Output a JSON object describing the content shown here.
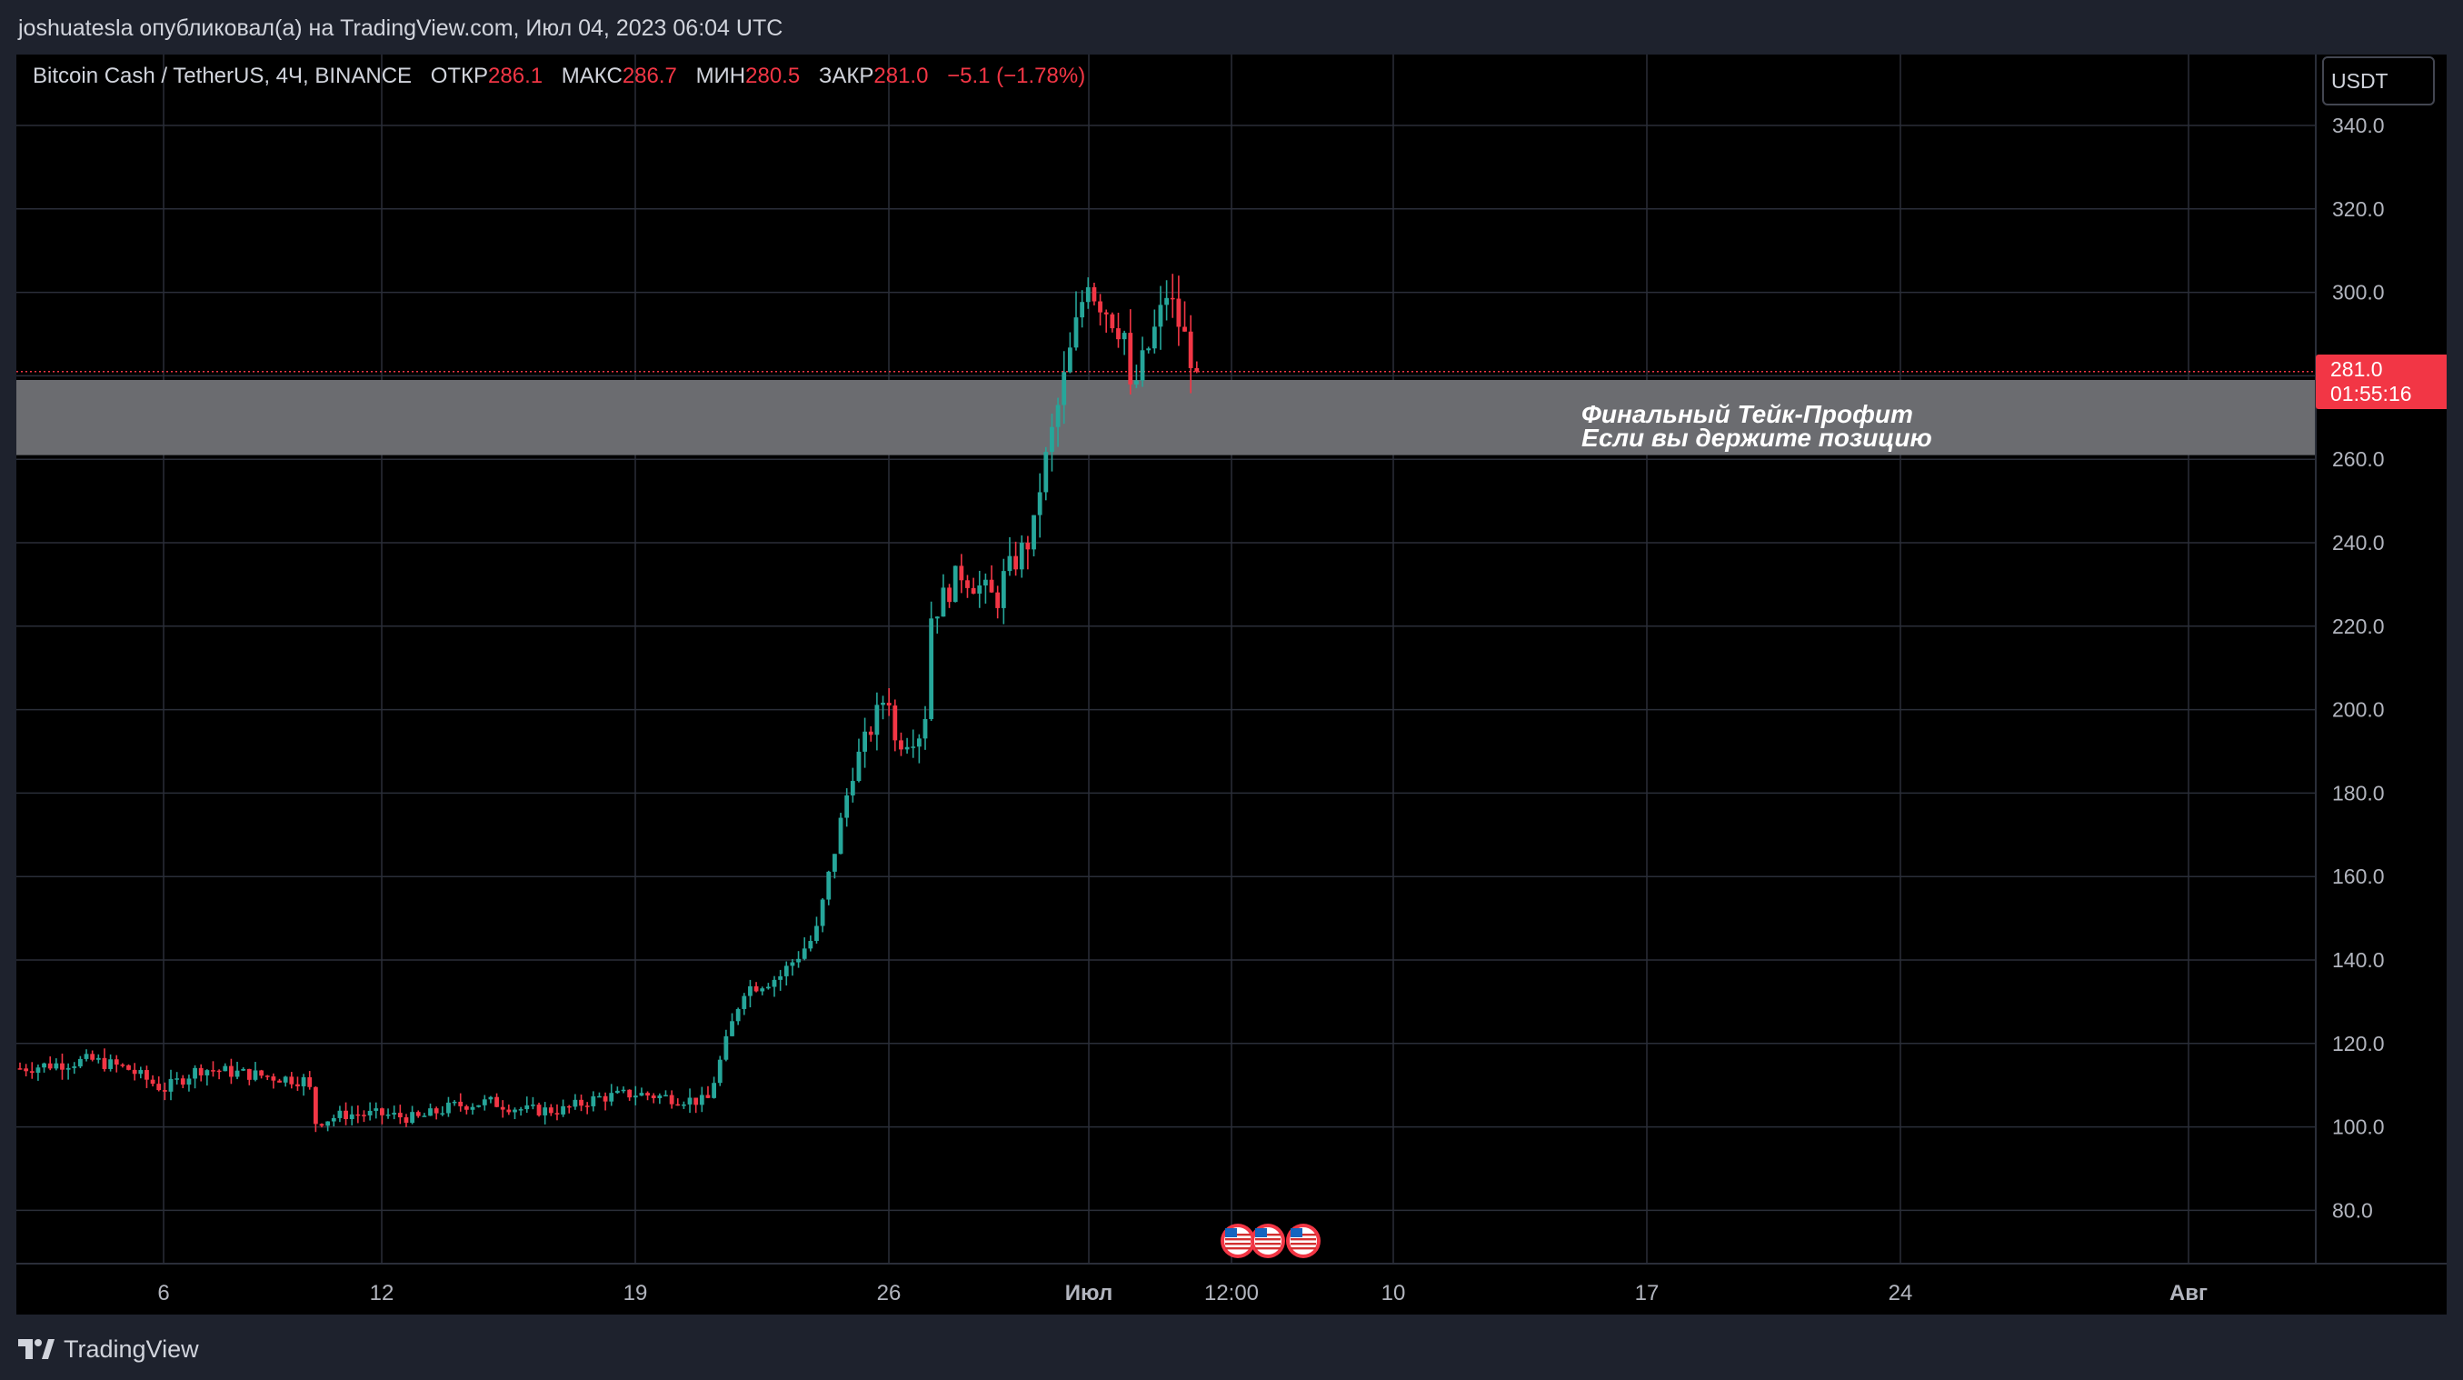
{
  "header": {
    "text": "joshuatesla опубликовал(а) на TradingView.com, Июл 04, 2023 06:04 UTC"
  },
  "legend": {
    "symbol": "Bitcoin Cash / TetherUS, 4Ч, BINANCE",
    "open_label": "ОТКР",
    "open_value": "286.1",
    "high_label": "МАКС",
    "high_value": "286.7",
    "low_label": "МИН",
    "low_value": "280.5",
    "close_label": "ЗАКР",
    "close_value": "281.0",
    "change": "−5.1 (−1.78%)"
  },
  "currency": "USDT",
  "price_tag": {
    "price": "281.0",
    "countdown": "01:55:16"
  },
  "zone": {
    "line1": "Финальный Тейк-Профит",
    "line2": "Если вы держите позицию"
  },
  "footer": {
    "brand": "TradingView"
  },
  "colors": {
    "up": "#26a69a",
    "down": "#f23645",
    "zone": "#6b6c70",
    "grid": "#2a2e39",
    "background": "#000000",
    "price_line": "#f23645"
  },
  "icons": [
    "us-flag-event-icon",
    "us-flag-event-icon",
    "us-flag-event-icon"
  ],
  "chart_data": {
    "type": "candlestick",
    "title": "Bitcoin Cash / TetherUS, 4Ч, BINANCE",
    "y_ticks": [
      "340.0",
      "320.0",
      "300.0",
      "280.0",
      "260.0",
      "240.0",
      "220.0",
      "200.0",
      "180.0",
      "160.0",
      "140.0",
      "120.0",
      "100.0",
      "80.0"
    ],
    "x_ticks": [
      "6",
      "12",
      "19",
      "26",
      "Июл",
      "12:00",
      "10",
      "17",
      "24",
      "Авг"
    ],
    "ylim": [
      70,
      350
    ],
    "last_price": 281.0,
    "zone": {
      "low": 261,
      "high": 279
    },
    "path": [
      [
        "Jun 2",
        114
      ],
      [
        "Jun 3",
        115
      ],
      [
        "Jun 4",
        116
      ],
      [
        "Jun 5",
        114
      ],
      [
        "Jun 6",
        109
      ],
      [
        "Jun 7",
        114
      ],
      [
        "Jun 8",
        113
      ],
      [
        "Jun 9",
        112
      ],
      [
        "Jun 10",
        111
      ],
      [
        "Jun 10",
        101
      ],
      [
        "Jun 11",
        103
      ],
      [
        "Jun 12",
        103
      ],
      [
        "Jun 13",
        102
      ],
      [
        "Jun 14",
        105
      ],
      [
        "Jun 15",
        106
      ],
      [
        "Jun 16",
        104
      ],
      [
        "Jun 17",
        104
      ],
      [
        "Jun 18",
        107
      ],
      [
        "Jun 19",
        108
      ],
      [
        "Jun 20",
        107
      ],
      [
        "Jun 21",
        106
      ],
      [
        "Jun 21",
        110
      ],
      [
        "Jun 22",
        133
      ],
      [
        "Jun 23",
        136
      ],
      [
        "Jun 24",
        146
      ],
      [
        "Jun 25",
        185
      ],
      [
        "Jun 26",
        205
      ],
      [
        "Jun 26",
        192
      ],
      [
        "Jun 27",
        195
      ],
      [
        "Jun 27",
        222
      ],
      [
        "Jun 28",
        233
      ],
      [
        "Jun 29",
        226
      ],
      [
        "Jun 29",
        231
      ],
      [
        "Jun 30",
        242
      ],
      [
        "Jun 30",
        252
      ],
      [
        "Jul 1",
        305
      ],
      [
        "Jul 1",
        300
      ],
      [
        "Jul 2",
        290
      ],
      [
        "Jul 2",
        275
      ],
      [
        "Jul 3",
        295
      ],
      [
        "Jul 3",
        300
      ],
      [
        "Jul 4",
        281
      ]
    ]
  }
}
